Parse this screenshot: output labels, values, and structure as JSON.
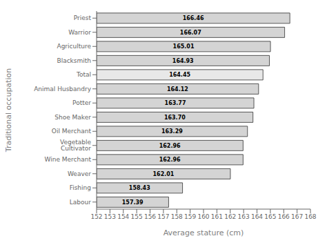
{
  "chart_data": {
    "type": "bar",
    "orientation": "horizontal",
    "xlabel": "Average stature (cm)",
    "ylabel": "Traditional occupation",
    "categories": [
      "Labour",
      "Fishing",
      "Weaver",
      "Wine Merchant",
      "Vegetable Cultivator",
      "Oil Merchant",
      "Shoe Maker",
      "Potter",
      "Animal Husbandry",
      "Total",
      "Blacksmith",
      "Agriculture",
      "Warrior",
      "Priest"
    ],
    "values": [
      157.39,
      158.43,
      162.01,
      162.96,
      162.96,
      163.29,
      163.7,
      163.77,
      164.12,
      164.45,
      164.93,
      165.01,
      166.07,
      166.46
    ],
    "value_labels": [
      "157.39",
      "158.43",
      "162.01",
      "162.96",
      "162.96",
      "163.29",
      "163.70",
      "163.77",
      "164.12",
      "164.45",
      "164.93",
      "165.01",
      "166.07",
      "166.46"
    ],
    "data_labels": true,
    "colors": [
      "#d4d4d4",
      "#d4d4d4",
      "#d4d4d4",
      "#d4d4d4",
      "#d4d4d4",
      "#d4d4d4",
      "#d4d4d4",
      "#d4d4d4",
      "#d4d4d4",
      "#e8e8e8",
      "#d4d4d4",
      "#d4d4d4",
      "#d4d4d4",
      "#d4d4d4"
    ],
    "xlim": [
      152,
      168
    ],
    "xticks": [
      152,
      153,
      154,
      155,
      156,
      157,
      158,
      159,
      160,
      161,
      162,
      163,
      164,
      165,
      166,
      167,
      168
    ],
    "grid": false
  }
}
